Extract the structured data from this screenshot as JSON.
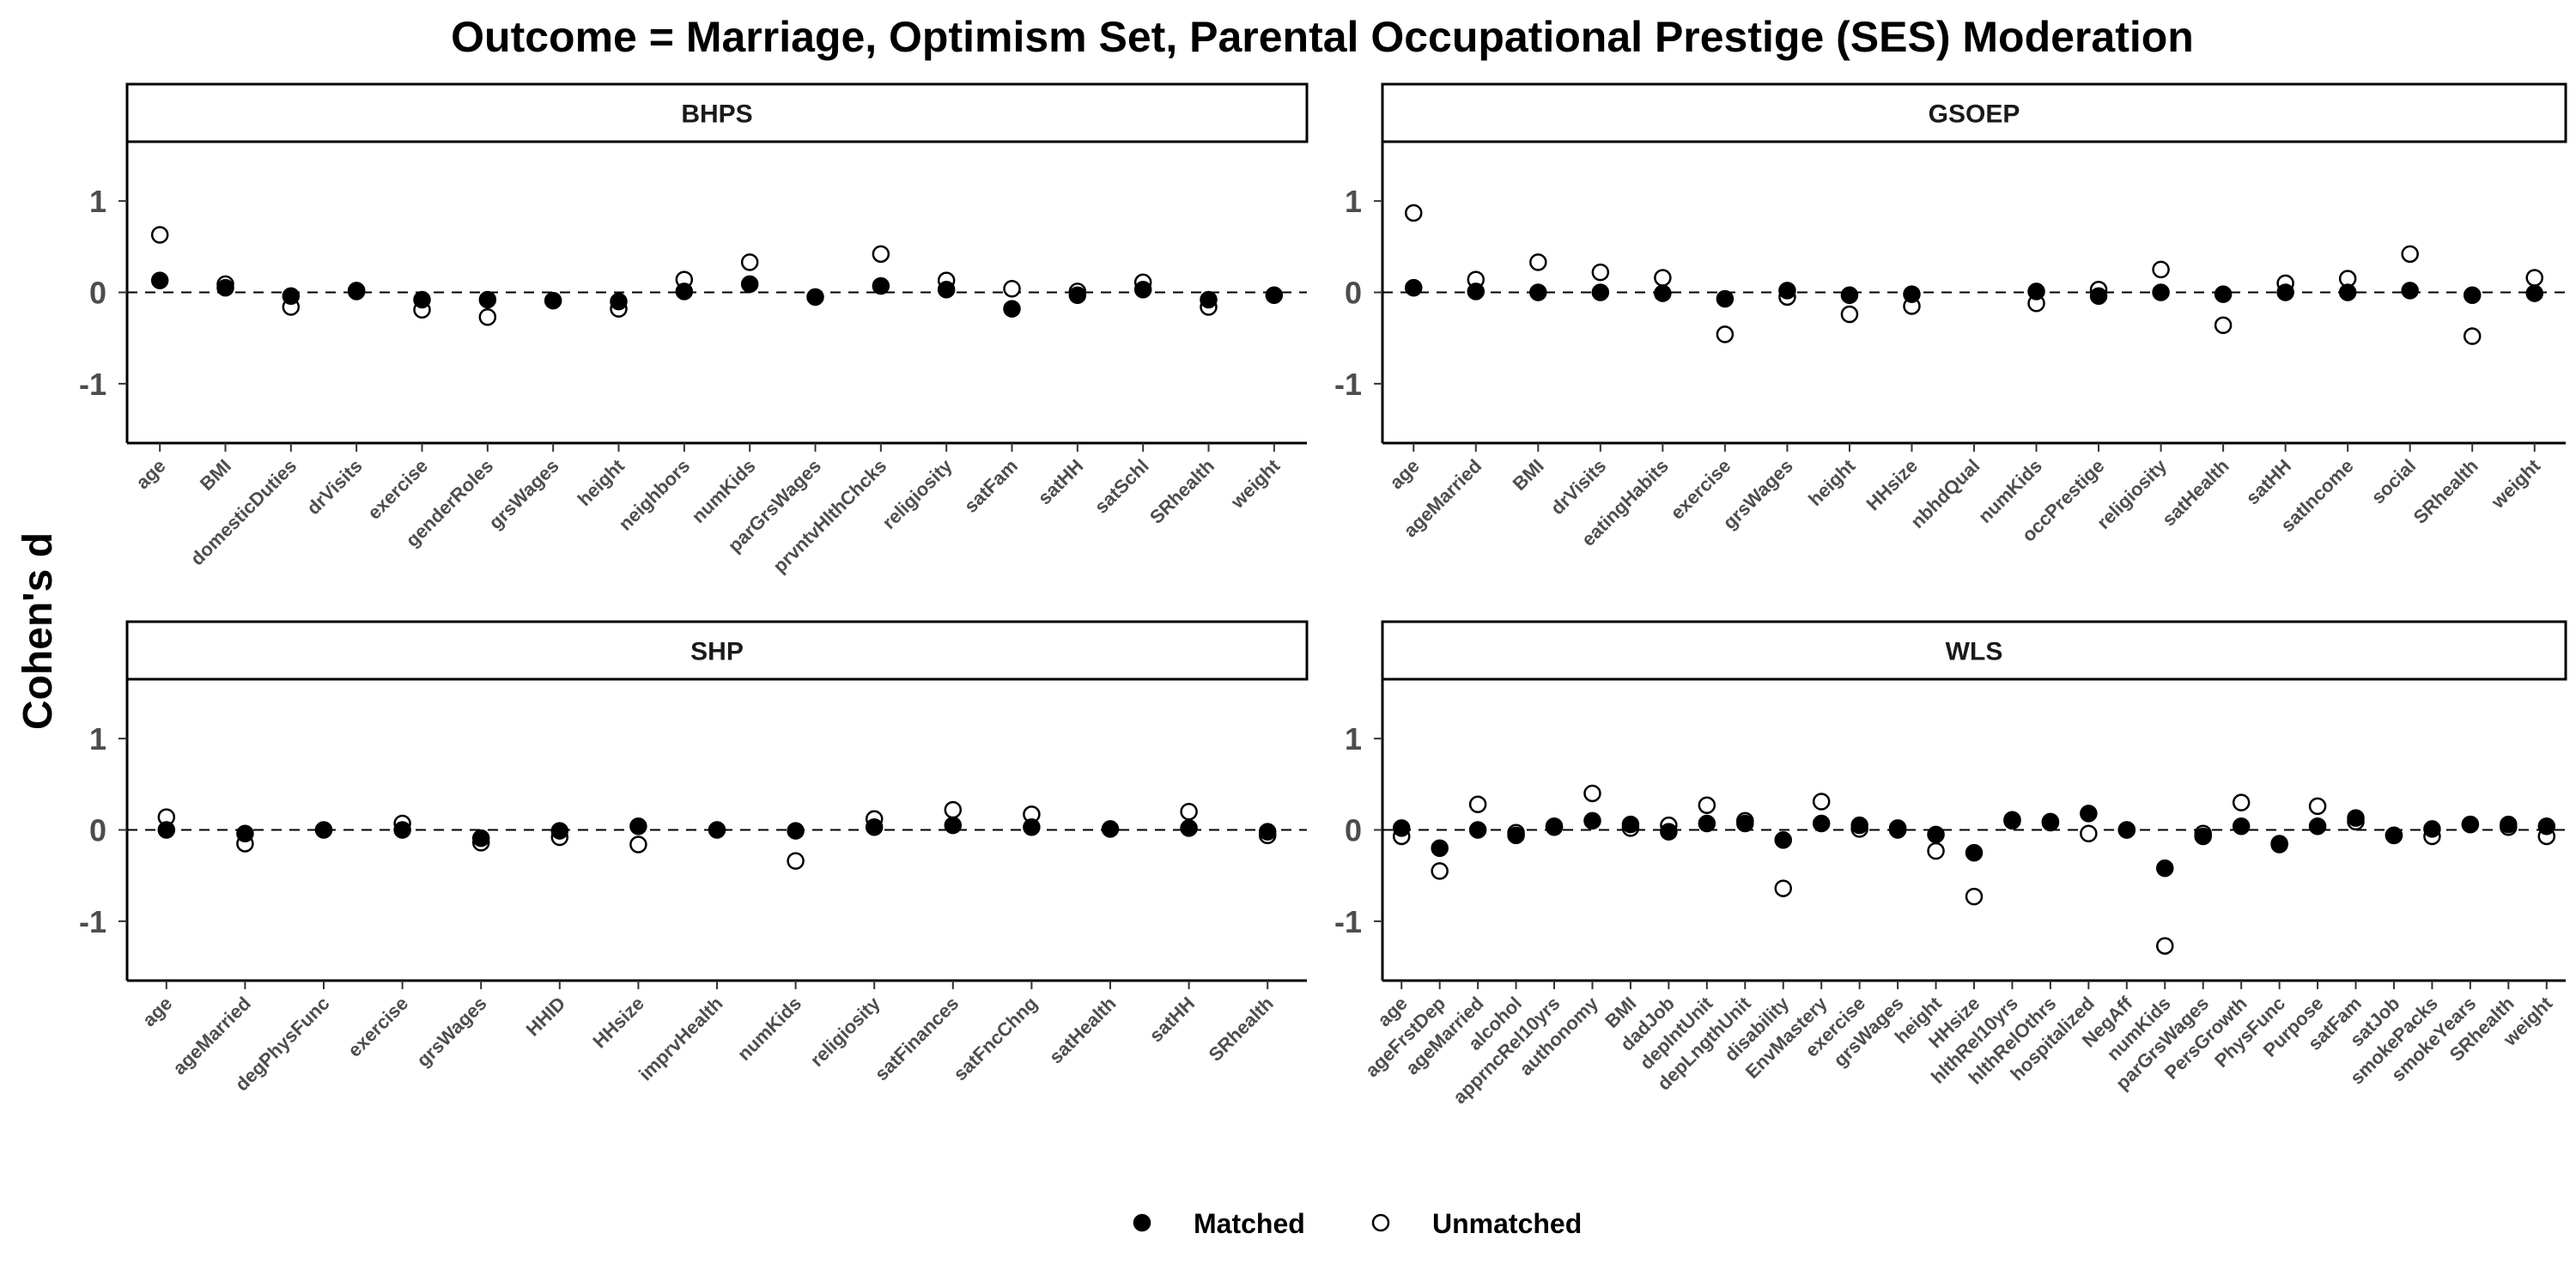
{
  "chart_data": {
    "type": "scatter",
    "title": "Outcome = Marriage, Optimism Set, Parental Occupational Prestige (SES) Moderation",
    "ylabel": "Cohen's d",
    "xlabel": "",
    "ylim": [
      -1.65,
      1.65
    ],
    "yticks": [
      -1,
      0,
      1
    ],
    "reference_line": 0,
    "legend": {
      "placement": "bottom",
      "entries": [
        {
          "name": "Matched",
          "marker": "filled-circle"
        },
        {
          "name": "Unmatched",
          "marker": "open-circle"
        }
      ]
    },
    "panels": [
      {
        "name": "BHPS",
        "categories": [
          "age",
          "BMI",
          "domesticDuties",
          "drVisits",
          "exercise",
          "genderRoles",
          "grsWages",
          "height",
          "neighbors",
          "numKids",
          "parGrsWages",
          "prvntvHlthChcks",
          "religiosity",
          "satFam",
          "satHH",
          "satSchl",
          "SRhealth",
          "weight"
        ],
        "series": [
          {
            "name": "Matched",
            "values": [
              0.13,
              0.05,
              -0.04,
              0.01,
              -0.08,
              -0.08,
              -0.09,
              -0.1,
              0.01,
              0.09,
              -0.05,
              0.07,
              0.03,
              -0.18,
              -0.03,
              0.03,
              -0.08,
              -0.03
            ]
          },
          {
            "name": "Unmatched",
            "values": [
              0.63,
              0.09,
              -0.16,
              0.02,
              -0.19,
              -0.27,
              null,
              -0.18,
              0.14,
              0.33,
              null,
              0.42,
              0.13,
              0.04,
              0.01,
              0.11,
              -0.16,
              null
            ]
          }
        ]
      },
      {
        "name": "GSOEP",
        "categories": [
          "age",
          "ageMarried",
          "BMI",
          "drVisits",
          "eatingHabits",
          "exercise",
          "grsWages",
          "height",
          "HHsize",
          "nbhdQual",
          "numKids",
          "occPrestige",
          "religiosity",
          "satHealth",
          "satHH",
          "satIncome",
          "social",
          "SRhealth",
          "weight"
        ],
        "series": [
          {
            "name": "Matched",
            "values": [
              0.05,
              0.01,
              0.0,
              0.0,
              -0.01,
              -0.07,
              0.02,
              -0.03,
              -0.02,
              null,
              0.01,
              -0.04,
              0.0,
              -0.02,
              0.0,
              0.0,
              0.02,
              -0.03,
              -0.01
            ]
          },
          {
            "name": "Unmatched",
            "values": [
              0.87,
              0.14,
              0.33,
              0.22,
              0.16,
              -0.46,
              -0.05,
              -0.24,
              -0.15,
              null,
              -0.12,
              0.03,
              0.25,
              -0.36,
              0.1,
              0.15,
              0.42,
              -0.48,
              0.16
            ]
          }
        ]
      },
      {
        "name": "SHP",
        "categories": [
          "age",
          "ageMarried",
          "degPhysFunc",
          "exercise",
          "grsWages",
          "HHID",
          "HHsize",
          "imprvHealth",
          "numKids",
          "religiosity",
          "satFinances",
          "satFncChng",
          "satHealth",
          "satHH",
          "SRhealth"
        ],
        "series": [
          {
            "name": "Matched",
            "values": [
              0.0,
              -0.04,
              0.0,
              0.0,
              -0.09,
              -0.01,
              0.04,
              0.0,
              -0.01,
              0.03,
              0.05,
              0.03,
              0.01,
              0.02,
              -0.02
            ]
          },
          {
            "name": "Unmatched",
            "values": [
              0.14,
              -0.15,
              null,
              0.07,
              -0.14,
              -0.08,
              -0.16,
              null,
              -0.34,
              0.12,
              0.22,
              0.17,
              null,
              0.2,
              -0.06
            ]
          }
        ]
      },
      {
        "name": "WLS",
        "categories": [
          "age",
          "ageFrstDep",
          "ageMarried",
          "alcohol",
          "apprncRel10yrs",
          "authonomy",
          "BMI",
          "dadJob",
          "depIntUnit",
          "depLngthUnit",
          "disability",
          "EnvMastery",
          "exercise",
          "grsWages",
          "height",
          "HHsize",
          "hlthRel10yrs",
          "hlthRelOthrs",
          "hospitalized",
          "NegAff",
          "numKids",
          "parGrsWages",
          "PersGrowth",
          "PhysFunc",
          "Purpose",
          "satFam",
          "satJob",
          "smokePacks",
          "smokeYears",
          "SRhealth",
          "weight"
        ],
        "series": [
          {
            "name": "Matched",
            "values": [
              0.02,
              -0.2,
              0.0,
              -0.06,
              0.03,
              0.1,
              0.06,
              -0.02,
              0.07,
              0.07,
              -0.11,
              0.07,
              0.05,
              0.02,
              -0.05,
              -0.25,
              0.1,
              0.08,
              0.18,
              0.0,
              -0.42,
              -0.07,
              0.04,
              -0.16,
              0.04,
              0.13,
              -0.06,
              0.01,
              0.06,
              0.06,
              0.04
            ]
          },
          {
            "name": "Unmatched",
            "values": [
              -0.07,
              -0.45,
              0.28,
              -0.03,
              0.04,
              0.4,
              0.02,
              0.05,
              0.27,
              0.1,
              -0.64,
              0.31,
              0.01,
              0.0,
              -0.23,
              -0.73,
              0.11,
              0.09,
              -0.04,
              0.0,
              -1.27,
              -0.04,
              0.3,
              -0.15,
              0.26,
              0.09,
              -0.06,
              -0.07,
              0.06,
              0.03,
              -0.07
            ]
          }
        ]
      }
    ]
  }
}
